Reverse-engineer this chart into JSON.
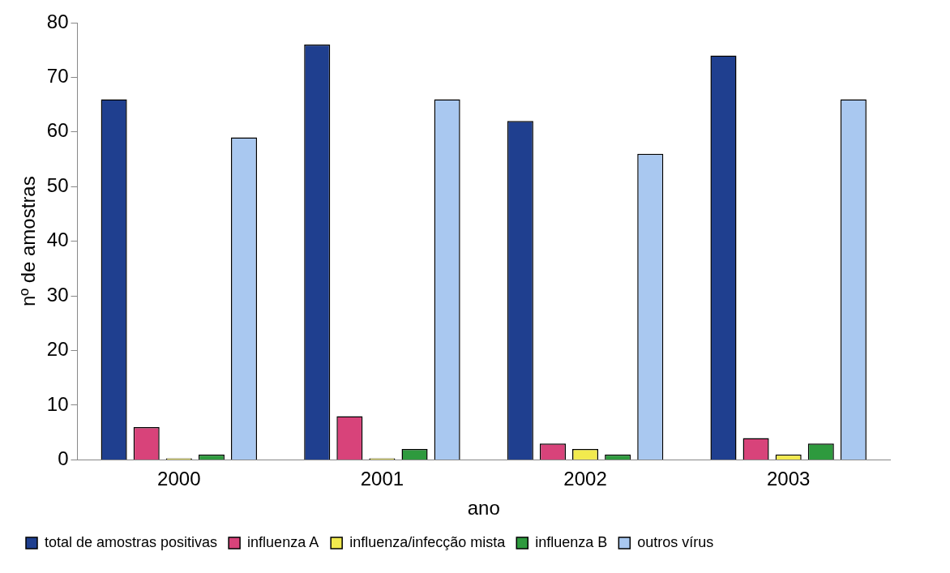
{
  "chart_data": {
    "type": "bar",
    "xlabel": "ano",
    "ylabel": "nº de amostras",
    "categories": [
      "2000",
      "2001",
      "2002",
      "2003"
    ],
    "series": [
      {
        "name": "total de amostras positivas",
        "color": "#1f3f8f",
        "values": [
          66,
          76,
          62,
          74
        ]
      },
      {
        "name": "influenza A",
        "color": "#d8437a",
        "values": [
          6,
          8,
          3,
          4
        ]
      },
      {
        "name": "influenza/infecção mista",
        "color": "#f2ea4e",
        "values": [
          0,
          0,
          2,
          1
        ]
      },
      {
        "name": "influenza B",
        "color": "#2e9a3e",
        "values": [
          1,
          2,
          1,
          3
        ]
      },
      {
        "name": "outros vírus",
        "color": "#a9c8f0",
        "values": [
          59,
          66,
          56,
          66
        ]
      }
    ],
    "ylim": [
      0,
      80
    ],
    "yticks": [
      0,
      10,
      20,
      30,
      40,
      50,
      60,
      70,
      80
    ],
    "grid": false,
    "legend": "bottom"
  }
}
